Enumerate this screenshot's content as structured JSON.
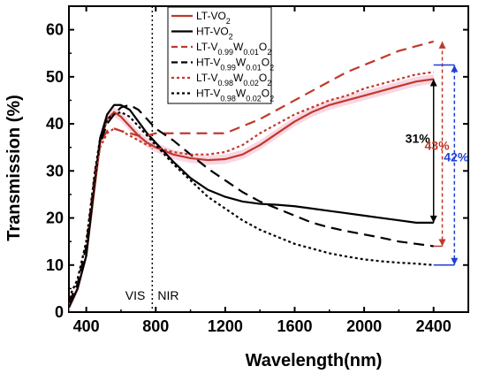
{
  "chart_data": {
    "type": "line",
    "xlabel": "Wavelength(nm)",
    "ylabel": "Transmission (%)",
    "xlim": [
      300,
      2600
    ],
    "ylim": [
      0,
      65
    ],
    "xticks": [
      400,
      800,
      1200,
      1600,
      2000,
      2400
    ],
    "yticks": [
      0,
      10,
      20,
      30,
      40,
      50,
      60
    ],
    "grid": false,
    "legend_position": "top-center",
    "series": [
      {
        "name": "LT-VO2",
        "legend": [
          "LT-VO",
          "2",
          ""
        ],
        "color": "#c0392b",
        "dash": "solid",
        "x": [
          300,
          350,
          400,
          450,
          480,
          520,
          560,
          600,
          650,
          700,
          750,
          800,
          900,
          1000,
          1100,
          1200,
          1300,
          1400,
          1500,
          1600,
          1700,
          1800,
          1900,
          2000,
          2100,
          2200,
          2300,
          2400
        ],
        "y": [
          1,
          5,
          12,
          27,
          36,
          41,
          42.5,
          41.5,
          39.5,
          37.5,
          36,
          35,
          33.5,
          32.7,
          32.3,
          32.5,
          33.5,
          35.5,
          38,
          40.5,
          42.5,
          44,
          45,
          46,
          47,
          48,
          49,
          49.5
        ]
      },
      {
        "name": "HT-VO2",
        "legend": [
          "HT-VO",
          "2",
          ""
        ],
        "color": "#000000",
        "dash": "solid",
        "x": [
          300,
          350,
          400,
          450,
          480,
          520,
          560,
          600,
          650,
          700,
          750,
          800,
          900,
          1000,
          1100,
          1200,
          1300,
          1400,
          1500,
          1600,
          1700,
          1800,
          1900,
          2000,
          2100,
          2200,
          2300,
          2400
        ],
        "y": [
          1,
          5,
          12,
          28,
          37,
          42,
          44,
          44,
          43,
          40.5,
          38,
          36,
          32,
          28.5,
          26,
          24.5,
          23.5,
          23,
          22.8,
          22.5,
          22,
          21.5,
          21,
          20.5,
          20,
          19.5,
          19,
          19
        ]
      },
      {
        "name": "LT-V0.99W0.01O2",
        "legend": [
          "LT-V",
          "0.99",
          "W",
          "0.01",
          "O",
          "2"
        ],
        "color": "#c0392b",
        "dash": "12,7",
        "x": [
          300,
          350,
          400,
          450,
          480,
          520,
          560,
          600,
          650,
          700,
          750,
          800,
          900,
          1000,
          1100,
          1200,
          1300,
          1400,
          1500,
          1600,
          1700,
          1800,
          1900,
          2000,
          2100,
          2200,
          2300,
          2400
        ],
        "y": [
          2,
          6,
          14,
          30,
          36,
          38.5,
          39,
          38.5,
          38,
          37.5,
          37.5,
          38,
          38,
          38,
          38,
          38,
          39.5,
          41,
          43,
          45,
          47,
          49,
          51,
          52.5,
          54,
          55.5,
          56.5,
          57.5
        ]
      },
      {
        "name": "HT-V0.99W0.01O2",
        "legend": [
          "HT-V",
          "0.99",
          "W",
          "0.01",
          "O",
          "2"
        ],
        "color": "#000000",
        "dash": "12,7",
        "x": [
          300,
          350,
          400,
          450,
          480,
          520,
          560,
          600,
          650,
          700,
          750,
          800,
          900,
          1000,
          1100,
          1200,
          1300,
          1400,
          1500,
          1600,
          1700,
          1800,
          1900,
          2000,
          2100,
          2200,
          2300,
          2400
        ],
        "y": [
          2,
          6,
          14,
          28,
          36,
          40,
          42,
          43.5,
          44,
          43,
          41,
          39,
          36.5,
          33.5,
          30.5,
          28,
          25.5,
          23.5,
          22,
          20.5,
          19,
          18,
          17.2,
          16.5,
          15.8,
          15,
          14.5,
          14
        ]
      },
      {
        "name": "LT-V0.98W0.02O2",
        "legend": [
          "LT-V",
          "0.98",
          "W",
          "0.02",
          "O",
          "2"
        ],
        "color": "#c0392b",
        "dash": "3,3",
        "x": [
          300,
          350,
          400,
          450,
          480,
          520,
          560,
          600,
          650,
          700,
          750,
          800,
          900,
          1000,
          1100,
          1200,
          1300,
          1400,
          1500,
          1600,
          1700,
          1800,
          1900,
          2000,
          2100,
          2200,
          2300,
          2400
        ],
        "y": [
          3,
          7,
          15,
          29,
          35,
          38,
          39,
          38.5,
          37.5,
          36.5,
          35.5,
          35,
          34,
          33.5,
          33.5,
          34,
          35.5,
          38,
          40,
          42,
          43.5,
          45,
          46,
          47.5,
          48.5,
          49.5,
          50.5,
          51
        ]
      },
      {
        "name": "HT-V0.98W0.02O2",
        "legend": [
          "HT-V",
          "0.98",
          "W",
          "0.02",
          "O",
          "2"
        ],
        "color": "#000000",
        "dash": "3,3",
        "x": [
          300,
          350,
          400,
          450,
          480,
          520,
          560,
          600,
          650,
          700,
          750,
          800,
          900,
          1000,
          1100,
          1200,
          1300,
          1400,
          1500,
          1600,
          1700,
          1800,
          1900,
          2000,
          2100,
          2200,
          2300,
          2400
        ],
        "y": [
          3,
          7,
          15,
          30,
          37,
          41,
          42,
          42.5,
          41.5,
          39.5,
          37.5,
          35.5,
          31.5,
          28,
          24.5,
          22,
          19.5,
          17.5,
          16,
          14.5,
          13.5,
          12.5,
          11.8,
          11.2,
          10.8,
          10.5,
          10.3,
          10
        ]
      }
    ],
    "region_labels": [
      "VIS",
      "NIR"
    ],
    "boundary_x": 780,
    "annotations": [
      {
        "text": "31%",
        "color": "#000000",
        "x": 2400,
        "y_from": 19,
        "y_to": 49.5
      },
      {
        "text": "43%",
        "color": "#c0392b",
        "x": 2450,
        "y_from": 14,
        "y_to": 57.5
      },
      {
        "text": "42%",
        "color": "#1f3fd6",
        "x": 2520,
        "y_from": 10,
        "y_to": 52.5
      }
    ]
  }
}
